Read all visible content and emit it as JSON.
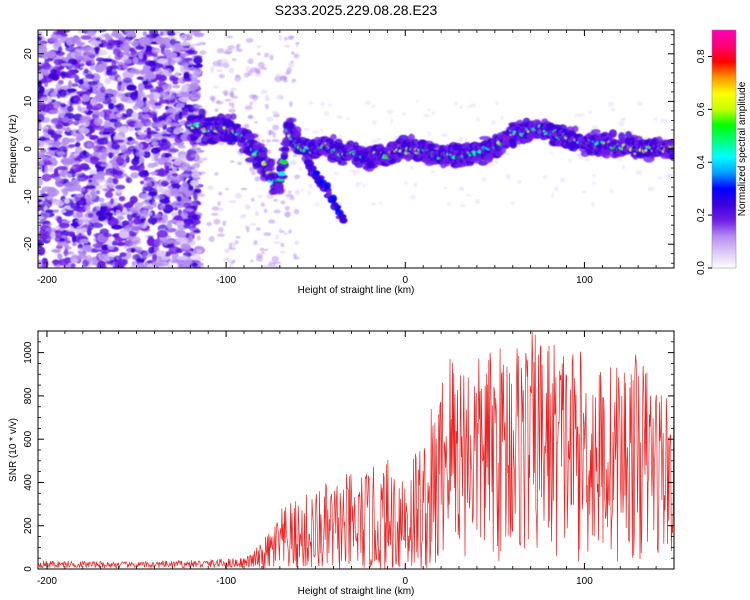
{
  "chart_data": [
    {
      "type": "heatmap",
      "title": "S233.2025.229.08.28.E23",
      "xlabel": "Height of straight line (km)",
      "ylabel": "Frequency (Hz)",
      "xlim": [
        -205,
        150
      ],
      "ylim": [
        -25,
        25
      ],
      "xticks": [
        -200,
        -100,
        0,
        100
      ],
      "yticks": [
        -20,
        -10,
        0,
        10,
        20
      ],
      "colorbar": {
        "label": "Normalized spectral amplitude",
        "range": [
          0,
          0.9
        ],
        "ticks": [
          "0.0",
          "0.2",
          "0.4",
          "0.6",
          "0.8"
        ],
        "colors": [
          "#ffffff",
          "#dcc8f5",
          "#b48cf0",
          "#6e1ee6",
          "#3c00dc",
          "#0000ff",
          "#00a0ff",
          "#00ffff",
          "#00ff80",
          "#00ff00",
          "#c8ff00",
          "#ffff00",
          "#ff9600",
          "#ff0000",
          "#ff0078",
          "#ff00b4"
        ]
      },
      "ridge": [
        {
          "x": -120,
          "y": 5
        },
        {
          "x": -110,
          "y": 4
        },
        {
          "x": -100,
          "y": 4.5
        },
        {
          "x": -90,
          "y": 3
        },
        {
          "x": -85,
          "y": 0
        },
        {
          "x": -80,
          "y": -2
        },
        {
          "x": -75,
          "y": -6
        },
        {
          "x": -70,
          "y": -7
        },
        {
          "x": -65,
          "y": 4
        },
        {
          "x": -60,
          "y": 1
        },
        {
          "x": -55,
          "y": 0
        },
        {
          "x": -50,
          "y": -0.5
        },
        {
          "x": -45,
          "y": 1
        },
        {
          "x": -40,
          "y": 0
        },
        {
          "x": -35,
          "y": -1
        },
        {
          "x": -30,
          "y": -0.5
        },
        {
          "x": -25,
          "y": -1.5
        },
        {
          "x": -20,
          "y": -2
        },
        {
          "x": -15,
          "y": -1
        },
        {
          "x": -10,
          "y": -1.5
        },
        {
          "x": -5,
          "y": -0.5
        },
        {
          "x": 0,
          "y": 0
        },
        {
          "x": 5,
          "y": 0
        },
        {
          "x": 10,
          "y": -0.5
        },
        {
          "x": 15,
          "y": -1
        },
        {
          "x": 20,
          "y": -1.5
        },
        {
          "x": 25,
          "y": -1
        },
        {
          "x": 30,
          "y": -1.5
        },
        {
          "x": 35,
          "y": -1
        },
        {
          "x": 40,
          "y": -0.5
        },
        {
          "x": 45,
          "y": 0
        },
        {
          "x": 50,
          "y": 0.5
        },
        {
          "x": 55,
          "y": 1.5
        },
        {
          "x": 60,
          "y": 3
        },
        {
          "x": 65,
          "y": 3.5
        },
        {
          "x": 70,
          "y": 4
        },
        {
          "x": 75,
          "y": 4
        },
        {
          "x": 80,
          "y": 3.5
        },
        {
          "x": 85,
          "y": 3
        },
        {
          "x": 90,
          "y": 2.5
        },
        {
          "x": 95,
          "y": 2
        },
        {
          "x": 100,
          "y": 1.5
        },
        {
          "x": 105,
          "y": 1.5
        },
        {
          "x": 110,
          "y": 1
        },
        {
          "x": 115,
          "y": 1
        },
        {
          "x": 120,
          "y": 0.5
        },
        {
          "x": 125,
          "y": 0.5
        },
        {
          "x": 130,
          "y": 0
        },
        {
          "x": 135,
          "y": 0
        },
        {
          "x": 140,
          "y": 0
        },
        {
          "x": 145,
          "y": 0
        },
        {
          "x": 150,
          "y": 0.5
        }
      ],
      "branch": [
        {
          "x": -55,
          "y": -3
        },
        {
          "x": -50,
          "y": -5
        },
        {
          "x": -45,
          "y": -8
        },
        {
          "x": -40,
          "y": -11
        },
        {
          "x": -36,
          "y": -14
        },
        {
          "x": -34,
          "y": -15
        }
      ]
    },
    {
      "type": "line",
      "xlabel": "Height of straight line (km)",
      "ylabel": "SNR (10 * v/v)",
      "xlim": [
        -205,
        150
      ],
      "ylim": [
        0,
        1100
      ],
      "xticks": [
        -200,
        -100,
        0,
        100
      ],
      "yticks": [
        0,
        200,
        400,
        600,
        800,
        1000
      ],
      "series": [
        {
          "name": "SNR",
          "color": "#ee2222",
          "envelope": [
            {
              "x": -205,
              "low": 0,
              "high": 50
            },
            {
              "x": -150,
              "low": 0,
              "high": 40
            },
            {
              "x": -110,
              "low": 0,
              "high": 55
            },
            {
              "x": -90,
              "low": 0,
              "high": 70
            },
            {
              "x": -80,
              "low": 0,
              "high": 120
            },
            {
              "x": -70,
              "low": 0,
              "high": 280
            },
            {
              "x": -50,
              "low": 0,
              "high": 380
            },
            {
              "x": -30,
              "low": 0,
              "high": 450
            },
            {
              "x": -15,
              "low": 0,
              "high": 480
            },
            {
              "x": -5,
              "low": 0,
              "high": 550
            },
            {
              "x": 10,
              "low": 0,
              "high": 630
            },
            {
              "x": 25,
              "low": 0,
              "high": 1050
            },
            {
              "x": 40,
              "low": 0,
              "high": 980
            },
            {
              "x": 60,
              "low": 0,
              "high": 1080
            },
            {
              "x": 75,
              "low": 0,
              "high": 1110
            },
            {
              "x": 90,
              "low": 0,
              "high": 1050
            },
            {
              "x": 110,
              "low": 0,
              "high": 950
            },
            {
              "x": 130,
              "low": 0,
              "high": 1000
            },
            {
              "x": 150,
              "low": 0,
              "high": 800
            }
          ]
        }
      ]
    }
  ]
}
